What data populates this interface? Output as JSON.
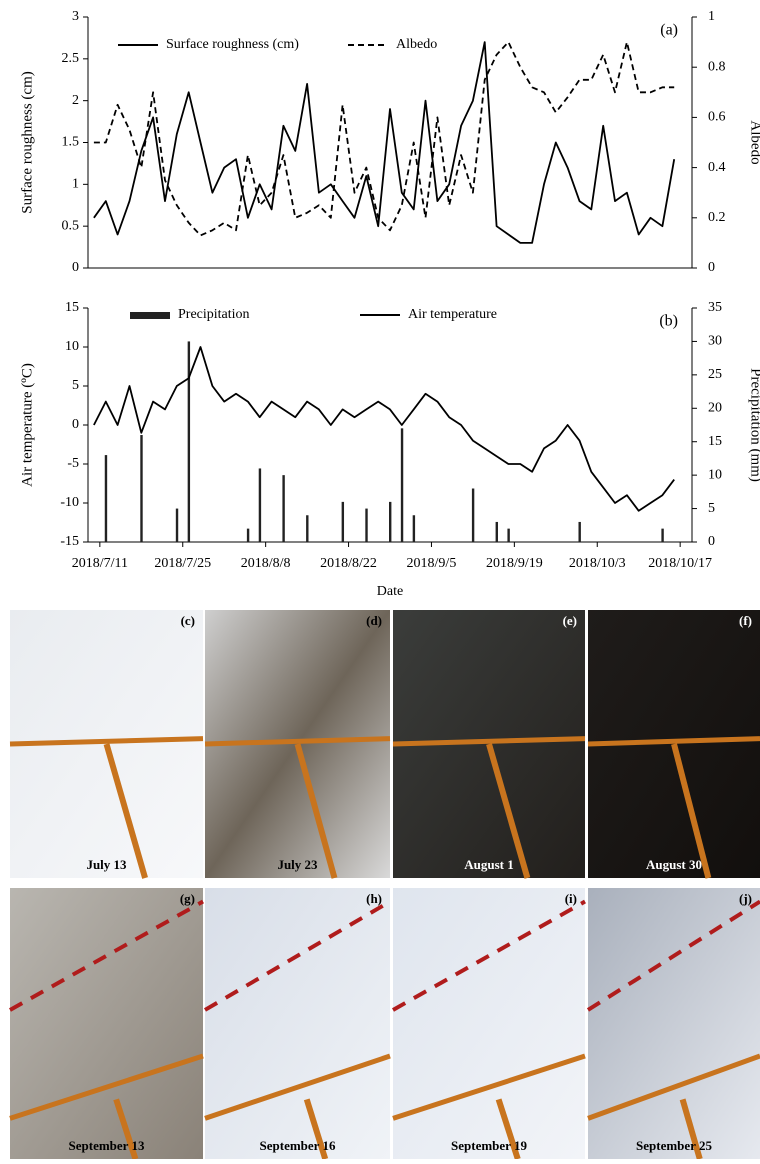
{
  "chart_data": [
    {
      "type": "line",
      "panel": "(a)",
      "ylabel": "Surface roughness (cm)",
      "y2label": "Albedo",
      "legend": "upper left",
      "x": [
        "2018/7/10",
        "2018/7/12",
        "2018/7/14",
        "2018/7/16",
        "2018/7/18",
        "2018/7/20",
        "2018/7/22",
        "2018/7/24",
        "2018/7/26",
        "2018/7/28",
        "2018/7/30",
        "2018/8/1",
        "2018/8/3",
        "2018/8/5",
        "2018/8/7",
        "2018/8/9",
        "2018/8/11",
        "2018/8/13",
        "2018/8/15",
        "2018/8/17",
        "2018/8/19",
        "2018/8/21",
        "2018/8/23",
        "2018/8/25",
        "2018/8/27",
        "2018/8/29",
        "2018/8/31",
        "2018/9/2",
        "2018/9/4",
        "2018/9/6",
        "2018/9/8",
        "2018/9/10",
        "2018/9/12",
        "2018/9/14",
        "2018/9/16",
        "2018/9/18",
        "2018/9/20",
        "2018/9/22",
        "2018/9/24",
        "2018/9/26",
        "2018/9/28",
        "2018/9/30",
        "2018/10/2",
        "2018/10/4",
        "2018/10/6",
        "2018/10/8",
        "2018/10/10",
        "2018/10/12",
        "2018/10/14",
        "2018/10/16"
      ],
      "xlim": [
        "2018/7/9",
        "2018/10/19"
      ],
      "ylim": [
        0,
        3
      ],
      "yticks": [
        0,
        0.5,
        1,
        1.5,
        2,
        2.5,
        3
      ],
      "y2lim": [
        0,
        1
      ],
      "y2ticks": [
        0,
        0.2,
        0.4,
        0.6,
        0.8,
        1
      ],
      "series": [
        {
          "name": "Surface roughness (cm)",
          "color": "#000000",
          "style": "solid",
          "values": [
            0.6,
            0.8,
            0.4,
            0.8,
            1.4,
            1.8,
            0.8,
            1.6,
            2.1,
            1.5,
            0.9,
            1.2,
            1.3,
            0.6,
            1.0,
            0.7,
            1.7,
            1.4,
            2.2,
            0.9,
            1.0,
            0.8,
            0.6,
            1.1,
            0.5,
            1.9,
            0.9,
            0.7,
            2.0,
            0.8,
            1.0,
            1.7,
            2.0,
            2.7,
            0.5,
            0.4,
            0.3,
            0.3,
            1.0,
            1.5,
            1.2,
            0.8,
            0.7,
            1.7,
            0.8,
            0.9,
            0.4,
            0.6,
            0.5,
            1.3
          ]
        },
        {
          "name": "Albedo",
          "color": "#000000",
          "style": "dashed",
          "axis": "y2",
          "values": [
            0.5,
            0.5,
            0.65,
            0.55,
            0.4,
            0.7,
            0.35,
            0.25,
            0.18,
            0.13,
            0.15,
            0.18,
            0.15,
            0.45,
            0.25,
            0.3,
            0.45,
            0.2,
            0.22,
            0.25,
            0.2,
            0.65,
            0.3,
            0.4,
            0.2,
            0.15,
            0.25,
            0.5,
            0.2,
            0.6,
            0.25,
            0.45,
            0.3,
            0.75,
            0.85,
            0.9,
            0.8,
            0.72,
            0.7,
            0.62,
            0.68,
            0.75,
            0.75,
            0.85,
            0.7,
            0.9,
            0.7,
            0.7,
            0.72,
            0.72
          ]
        }
      ]
    },
    {
      "type": "line",
      "panel": "(b)",
      "ylabel": "Air temperature (ºC)",
      "y2label": "Precipitation (mm)",
      "xlabel": "Date",
      "legend": "upper left",
      "x": [
        "2018/7/10",
        "2018/7/12",
        "2018/7/14",
        "2018/7/16",
        "2018/7/18",
        "2018/7/20",
        "2018/7/22",
        "2018/7/24",
        "2018/7/26",
        "2018/7/28",
        "2018/7/30",
        "2018/8/1",
        "2018/8/3",
        "2018/8/5",
        "2018/8/7",
        "2018/8/9",
        "2018/8/11",
        "2018/8/13",
        "2018/8/15",
        "2018/8/17",
        "2018/8/19",
        "2018/8/21",
        "2018/8/23",
        "2018/8/25",
        "2018/8/27",
        "2018/8/29",
        "2018/8/31",
        "2018/9/2",
        "2018/9/4",
        "2018/9/6",
        "2018/9/8",
        "2018/9/10",
        "2018/9/12",
        "2018/9/14",
        "2018/9/16",
        "2018/9/18",
        "2018/9/20",
        "2018/9/22",
        "2018/9/24",
        "2018/9/26",
        "2018/9/28",
        "2018/9/30",
        "2018/10/2",
        "2018/10/4",
        "2018/10/6",
        "2018/10/8",
        "2018/10/10",
        "2018/10/12",
        "2018/10/14",
        "2018/10/16"
      ],
      "xlim": [
        "2018/7/9",
        "2018/10/19"
      ],
      "xticks": [
        "2018/7/11",
        "2018/7/25",
        "2018/8/8",
        "2018/8/22",
        "2018/9/5",
        "2018/9/19",
        "2018/10/3",
        "2018/10/17"
      ],
      "ylim": [
        -15,
        15
      ],
      "yticks": [
        -15,
        -10,
        -5,
        0,
        5,
        10,
        15
      ],
      "y2lim": [
        0,
        35
      ],
      "y2ticks": [
        0,
        5,
        10,
        15,
        20,
        25,
        30,
        35
      ],
      "series": [
        {
          "name": "Precipitation",
          "color": "#222222",
          "type": "bar",
          "axis": "y2",
          "values": [
            0,
            13,
            0,
            0,
            16,
            0,
            0,
            5,
            30,
            0,
            0,
            0,
            0,
            2,
            11,
            0,
            10,
            0,
            4,
            0,
            0,
            6,
            0,
            5,
            0,
            6,
            17,
            4,
            0,
            0,
            0,
            0,
            8,
            0,
            3,
            2,
            0,
            0,
            0,
            0,
            0,
            3,
            0,
            0,
            0,
            0,
            0,
            0,
            2,
            0
          ]
        },
        {
          "name": "Air temperature",
          "color": "#000000",
          "style": "solid",
          "values": [
            0,
            3,
            0,
            5,
            -1,
            3,
            2,
            5,
            6,
            10,
            5,
            3,
            4,
            3,
            1,
            3,
            2,
            1,
            3,
            2,
            0,
            2,
            1,
            2,
            3,
            2,
            0,
            2,
            4,
            3,
            1,
            0,
            -2,
            -3,
            -4,
            -5,
            -5,
            -6,
            -3,
            -2,
            0,
            -2,
            -6,
            -8,
            -10,
            -9,
            -11,
            -10,
            -9,
            -7
          ]
        }
      ]
    }
  ],
  "photos": [
    {
      "panel": "(c)",
      "caption": "July 13"
    },
    {
      "panel": "(d)",
      "caption": "July 23"
    },
    {
      "panel": "(e)",
      "caption": "August 1"
    },
    {
      "panel": "(f)",
      "caption": "August 30"
    },
    {
      "panel": "(g)",
      "caption": "September 13"
    },
    {
      "panel": "(h)",
      "caption": "September 16"
    },
    {
      "panel": "(i)",
      "caption": "September 19"
    },
    {
      "panel": "(j)",
      "caption": "September 25"
    }
  ]
}
